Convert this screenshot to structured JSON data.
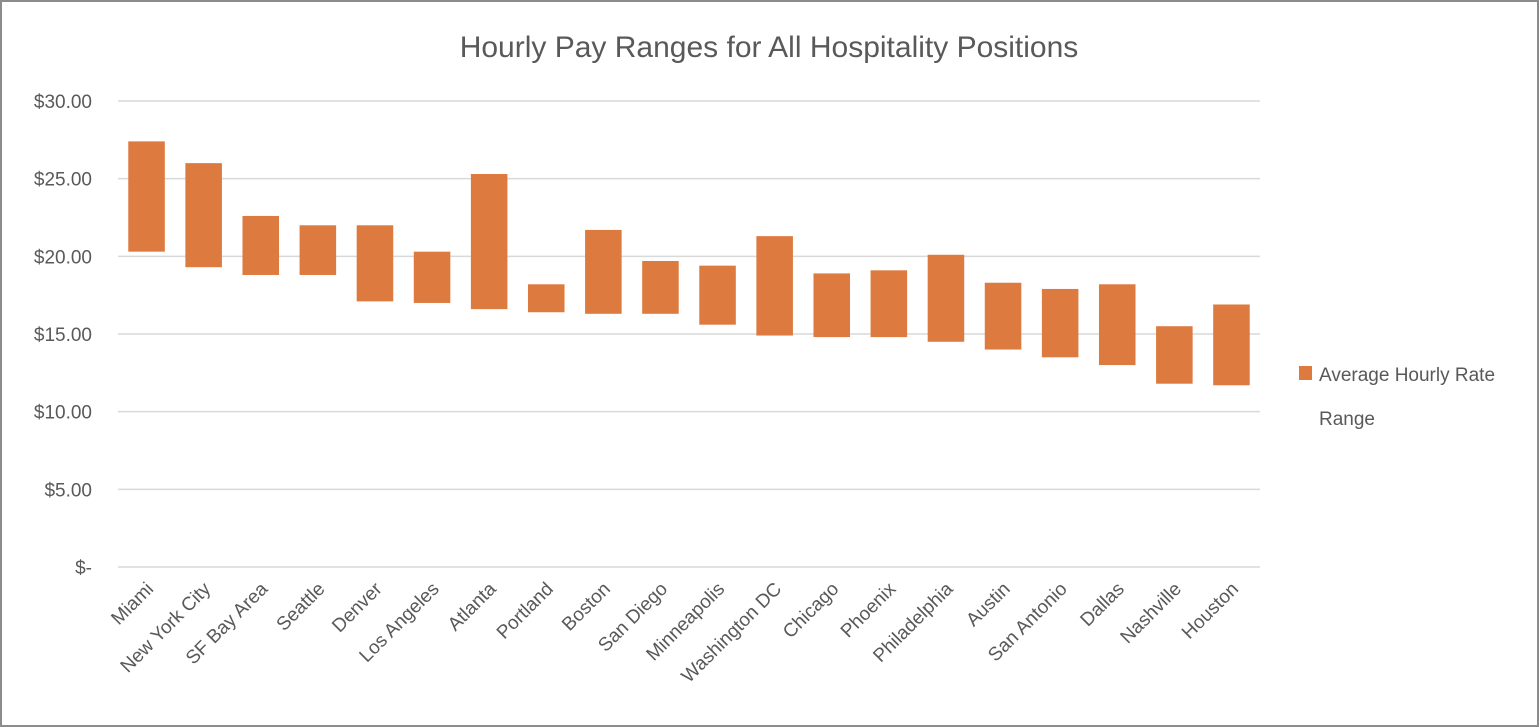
{
  "chart_data": {
    "type": "bar",
    "subtype": "floating-range",
    "title": "Hourly Pay Ranges for All Hospitality Positions",
    "xlabel": "",
    "ylabel": "",
    "ylim": [
      0,
      30
    ],
    "ytick_values": [
      0,
      5,
      10,
      15,
      20,
      25,
      30
    ],
    "ytick_labels": [
      "$-",
      "$5.00",
      "$10.00",
      "$15.00",
      "$20.00",
      "$25.00",
      "$30.00"
    ],
    "grid": true,
    "legend_position": "right",
    "legend_lines": [
      "Average Hourly Rate",
      "Range"
    ],
    "bar_color": "#DD7A3F",
    "categories": [
      "Miami",
      "New York City",
      "SF Bay Area",
      "Seattle",
      "Denver",
      "Los Angeles",
      "Atlanta",
      "Portland",
      "Boston",
      "San Diego",
      "Minneapolis",
      "Washington DC",
      "Chicago",
      "Phoenix",
      "Philadelphia",
      "Austin",
      "San Antonio",
      "Dallas",
      "Nashville",
      "Houston"
    ],
    "series": [
      {
        "low": [
          20.3,
          19.3,
          18.8,
          18.8,
          17.1,
          17.0,
          16.6,
          16.4,
          16.3,
          16.3,
          15.6,
          14.9,
          14.8,
          14.8,
          14.5,
          14.0,
          13.5,
          13.0,
          11.8,
          11.7
        ],
        "high": [
          27.4,
          26.0,
          22.6,
          22.0,
          22.0,
          20.3,
          25.3,
          18.2,
          21.7,
          19.7,
          19.4,
          21.3,
          18.9,
          19.1,
          20.1,
          18.3,
          17.9,
          18.2,
          15.5,
          16.9
        ]
      }
    ]
  }
}
